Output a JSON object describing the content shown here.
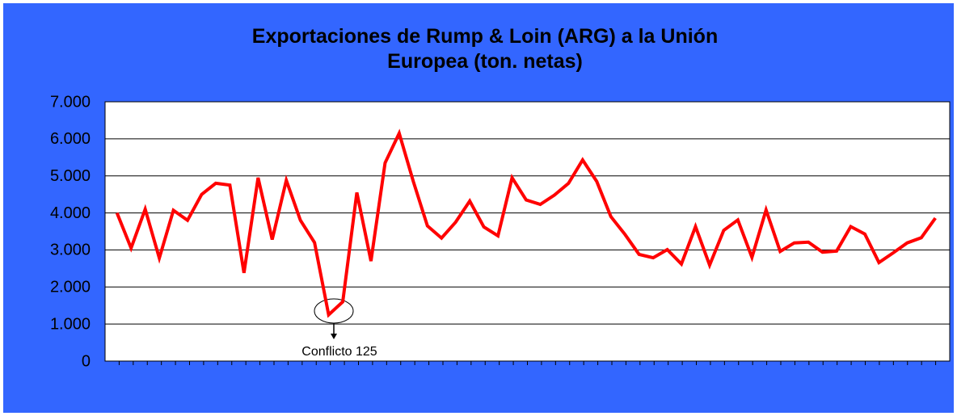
{
  "chart_data": {
    "type": "line",
    "title": "Exportaciones de Rump & Loin (ARG) a la Unión Europea (ton. netas)",
    "annotation": "Conflicto 125",
    "categories": [
      null,
      null,
      null,
      null,
      null,
      null,
      null,
      null,
      null,
      null,
      null,
      null,
      null,
      null,
      null,
      null,
      null,
      null,
      null,
      null,
      null,
      null,
      null,
      null,
      null,
      null,
      null,
      null,
      null,
      null,
      null,
      null,
      null,
      null,
      null,
      null,
      null,
      null,
      null,
      null,
      null,
      null,
      null,
      null,
      null,
      null,
      null,
      null,
      null,
      null,
      null,
      null,
      null,
      null,
      null,
      null,
      null,
      null,
      null
    ],
    "series": [
      {
        "name": null,
        "color": "#ff0000",
        "values": [
          4000,
          3050,
          4100,
          2780,
          4070,
          3800,
          4500,
          4800,
          4750,
          2380,
          4950,
          3280,
          4880,
          3800,
          3200,
          1250,
          1600,
          4550,
          2700,
          5350,
          6150,
          4850,
          3650,
          3320,
          3750,
          4320,
          3620,
          3380,
          4950,
          4350,
          4230,
          4480,
          4800,
          5430,
          4850,
          3900,
          3420,
          2880,
          2790,
          3010,
          2620,
          3630,
          2590,
          3530,
          3810,
          2800,
          4080,
          2960,
          3190,
          3210,
          2940,
          2970,
          3630,
          3430,
          2660,
          2920,
          3190,
          3330,
          3860
        ]
      }
    ],
    "ylim": [
      0,
      7000
    ],
    "yticks": [
      0,
      {
        "value": 1000,
        "label": "1.000"
      },
      {
        "value": 2000,
        "label": "2.000"
      },
      {
        "value": 3000,
        "label": "3.000"
      },
      {
        "value": 4000,
        "label": "4.000"
      },
      {
        "value": 5000,
        "label": "5.000"
      },
      {
        "value": 6000,
        "label": "6.000"
      },
      {
        "value": 7000,
        "label": "7.000"
      }
    ],
    "grid": true
  }
}
